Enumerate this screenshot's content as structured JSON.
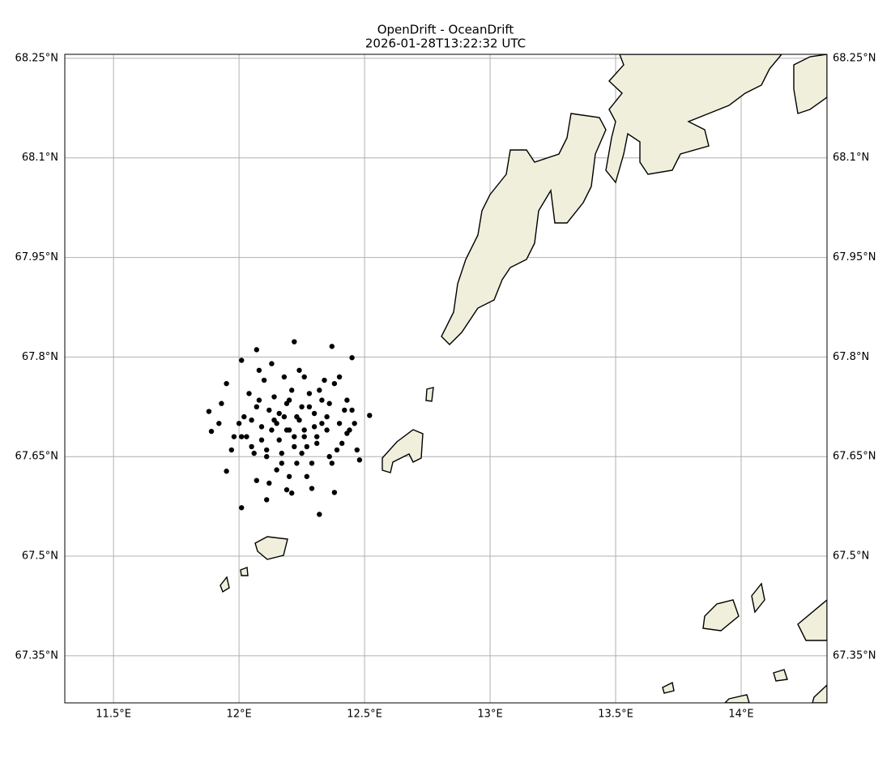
{
  "chart_data": {
    "type": "scatter",
    "title": "OpenDrift - OceanDrift",
    "subtitle": "2026-01-28T13:22:32 UTC",
    "color": "#000000",
    "grid": true,
    "xlim": [
      11.306,
      14.342
    ],
    "ylim": [
      67.279,
      68.256
    ],
    "xticks": [
      {
        "value": 11.5,
        "label": "11.5°E"
      },
      {
        "value": 12,
        "label": "12°E"
      },
      {
        "value": 12.5,
        "label": "12.5°E"
      },
      {
        "value": 13,
        "label": "13°E"
      },
      {
        "value": 13.5,
        "label": "13.5°E"
      },
      {
        "value": 14,
        "label": "14°E"
      }
    ],
    "yticks": [
      {
        "value": 67.35,
        "label": "67.35°N"
      },
      {
        "value": 67.5,
        "label": "67.5°N"
      },
      {
        "value": 67.65,
        "label": "67.65°N"
      },
      {
        "value": 67.8,
        "label": "67.8°N"
      },
      {
        "value": 67.95,
        "label": "67.95°N"
      },
      {
        "value": 68.1,
        "label": "68.1°N"
      },
      {
        "value": 68.25,
        "label": "68.25°N"
      }
    ],
    "x": [
      12.01,
      12.22,
      12.52,
      12.32,
      11.88,
      12.11,
      12.37,
      12.45,
      12.01,
      12.07,
      11.95,
      11.89,
      11.95,
      12.48,
      12.43,
      12.38,
      12.29,
      12.21,
      12.07,
      12.15,
      12.18,
      12.2,
      12.24,
      12.26,
      12.12,
      12.09,
      12.3,
      12.33,
      12.16,
      12.19,
      12.22,
      12.25,
      12.14,
      12.11,
      12.28,
      12.35,
      12.05,
      12.03,
      12.4,
      12.42,
      12.17,
      12.21,
      12.23,
      12.27,
      12.13,
      12.08,
      12.31,
      12.36,
      12.06,
      12.0,
      12.39,
      12.44,
      12.18,
      12.2,
      12.26,
      12.15,
      12.1,
      12.29,
      12.34,
      12.04,
      11.98,
      12.46,
      12.47,
      12.12,
      12.24,
      12.19,
      12.27,
      12.32,
      12.02,
      11.93,
      12.41,
      12.37,
      12.16,
      12.22,
      12.09,
      12.3,
      12.14,
      12.25,
      12.07,
      12.35,
      11.97,
      12.43,
      12.2,
      12.17,
      12.28,
      12.11,
      12.33,
      12.05,
      12.38,
      12.23,
      11.92,
      12.45,
      12.13,
      12.26,
      12.19,
      12.31,
      12.08,
      12.36,
      12.01,
      12.4
    ],
    "y": [
      67.573,
      67.823,
      67.712,
      67.563,
      67.718,
      67.585,
      67.816,
      67.799,
      67.795,
      67.811,
      67.76,
      67.688,
      67.628,
      67.645,
      67.735,
      67.596,
      67.602,
      67.595,
      67.614,
      67.7,
      67.71,
      67.69,
      67.705,
      67.68,
      67.72,
      67.695,
      67.715,
      67.7,
      67.675,
      67.73,
      67.665,
      67.725,
      67.74,
      67.66,
      67.745,
      67.69,
      67.705,
      67.68,
      67.7,
      67.72,
      67.655,
      67.75,
      67.64,
      67.665,
      67.69,
      67.735,
      67.67,
      67.73,
      67.655,
      67.7,
      67.66,
      67.69,
      67.77,
      67.62,
      67.77,
      67.63,
      67.765,
      67.64,
      67.765,
      67.745,
      67.68,
      67.7,
      67.66,
      67.61,
      67.78,
      67.69,
      67.62,
      67.75,
      67.71,
      67.73,
      67.67,
      67.64,
      67.715,
      67.68,
      67.675,
      67.695,
      67.705,
      67.655,
      67.725,
      67.71,
      67.66,
      67.685,
      67.735,
      67.64,
      67.725,
      67.65,
      67.735,
      67.665,
      67.76,
      67.71,
      67.7,
      67.72,
      67.79,
      67.69,
      67.6,
      67.68,
      67.78,
      67.65,
      67.68,
      67.77
    ]
  }
}
